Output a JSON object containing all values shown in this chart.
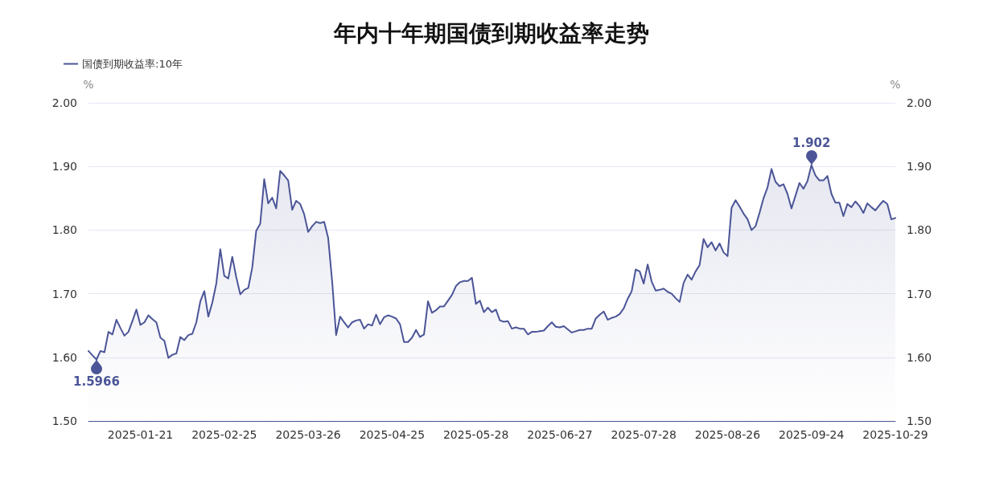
{
  "chart_data": {
    "type": "area",
    "title": "年内十年期国债到期收益率走势",
    "ylabel": "%",
    "y2label": "%",
    "legend": "top left",
    "grid": "y",
    "categories": [
      null,
      null,
      null,
      null,
      null,
      null,
      null,
      null,
      null,
      null,
      null,
      null,
      null,
      "2025-01-21",
      null,
      null,
      null,
      null,
      null,
      null,
      null,
      null,
      null,
      null,
      null,
      null,
      null,
      null,
      null,
      null,
      null,
      null,
      null,
      null,
      "2025-02-25",
      null,
      null,
      null,
      null,
      null,
      null,
      null,
      null,
      null,
      null,
      null,
      null,
      null,
      null,
      null,
      null,
      null,
      null,
      null,
      null,
      "2025-03-26",
      null,
      null,
      null,
      null,
      null,
      null,
      null,
      null,
      null,
      null,
      null,
      null,
      null,
      null,
      null,
      null,
      null,
      null,
      null,
      null,
      "2025-04-25",
      null,
      null,
      null,
      null,
      null,
      null,
      null,
      null,
      null,
      null,
      null,
      null,
      null,
      null,
      null,
      null,
      null,
      null,
      null,
      null,
      "2025-05-28",
      null,
      null,
      null,
      null,
      null,
      null,
      null,
      null,
      null,
      null,
      null,
      null,
      null,
      null,
      null,
      null,
      null,
      null,
      null,
      null,
      "2025-06-27",
      null,
      null,
      null,
      null,
      null,
      null,
      null,
      null,
      null,
      null,
      null,
      null,
      null,
      null,
      null,
      null,
      null,
      null,
      null,
      null,
      "2025-07-28",
      null,
      null,
      null,
      null,
      null,
      null,
      null,
      null,
      null,
      null,
      null,
      null,
      null,
      null,
      null,
      null,
      null,
      null,
      null,
      null,
      "2025-08-26",
      null,
      null,
      null,
      null,
      null,
      null,
      null,
      null,
      null,
      null,
      null,
      null,
      null,
      null,
      null,
      null,
      null,
      null,
      null,
      null,
      "2025-09-24",
      null,
      null,
      null,
      null,
      null,
      null,
      null,
      null,
      null,
      null,
      null,
      null,
      null,
      null,
      null,
      null,
      null,
      null,
      null,
      null,
      "2025-10-29"
    ],
    "series": [
      {
        "name": "国债到期收益率:10年",
        "color": "#4b5597",
        "values": [
          1.61,
          1.603,
          1.5966,
          1.61,
          1.608,
          1.64,
          1.636,
          1.659,
          1.646,
          1.634,
          1.64,
          1.657,
          1.675,
          1.651,
          1.655,
          1.666,
          1.66,
          1.655,
          1.631,
          1.626,
          1.599,
          1.604,
          1.606,
          1.632,
          1.627,
          1.635,
          1.637,
          1.655,
          1.688,
          1.704,
          1.664,
          1.686,
          1.716,
          1.77,
          1.728,
          1.724,
          1.758,
          1.726,
          1.699,
          1.706,
          1.709,
          1.741,
          1.799,
          1.81,
          1.88,
          1.842,
          1.851,
          1.834,
          1.893,
          1.886,
          1.878,
          1.832,
          1.846,
          1.841,
          1.825,
          1.797,
          1.806,
          1.813,
          1.811,
          1.813,
          1.788,
          1.72,
          1.635,
          1.664,
          1.655,
          1.647,
          1.655,
          1.658,
          1.659,
          1.645,
          1.652,
          1.65,
          1.667,
          1.652,
          1.663,
          1.666,
          1.664,
          1.661,
          1.652,
          1.624,
          1.624,
          1.631,
          1.643,
          1.632,
          1.636,
          1.688,
          1.67,
          1.674,
          1.68,
          1.68,
          1.689,
          1.698,
          1.712,
          1.718,
          1.72,
          1.72,
          1.725,
          1.684,
          1.689,
          1.671,
          1.678,
          1.671,
          1.675,
          1.658,
          1.656,
          1.657,
          1.645,
          1.647,
          1.645,
          1.645,
          1.636,
          1.64,
          1.64,
          1.641,
          1.642,
          1.649,
          1.655,
          1.648,
          1.647,
          1.649,
          1.644,
          1.639,
          1.641,
          1.643,
          1.643,
          1.645,
          1.645,
          1.661,
          1.667,
          1.672,
          1.659,
          1.662,
          1.664,
          1.668,
          1.677,
          1.692,
          1.704,
          1.738,
          1.735,
          1.716,
          1.746,
          1.719,
          1.705,
          1.706,
          1.708,
          1.703,
          1.7,
          1.693,
          1.687,
          1.717,
          1.73,
          1.722,
          1.735,
          1.745,
          1.786,
          1.773,
          1.781,
          1.768,
          1.779,
          1.765,
          1.759,
          1.835,
          1.847,
          1.837,
          1.826,
          1.817,
          1.8,
          1.806,
          1.827,
          1.85,
          1.867,
          1.896,
          1.876,
          1.869,
          1.872,
          1.857,
          1.834,
          1.854,
          1.874,
          1.865,
          1.877,
          1.902,
          1.886,
          1.878,
          1.878,
          1.885,
          1.857,
          1.843,
          1.843,
          1.822,
          1.841,
          1.836,
          1.845,
          1.838,
          1.827,
          1.842,
          1.836,
          1.831,
          1.839,
          1.846,
          1.841,
          1.817,
          1.819
        ],
        "value_labels": [
          null,
          null,
          "1.5966",
          null,
          null,
          null,
          null,
          null,
          null,
          null,
          null,
          null,
          null,
          null,
          null,
          null,
          null,
          null,
          null,
          null,
          null,
          null,
          null,
          null,
          null,
          null,
          null,
          null,
          null,
          null,
          null,
          null,
          null,
          null,
          null,
          null,
          null,
          null,
          null,
          null,
          null,
          null,
          null,
          null,
          null,
          null,
          null,
          null,
          null,
          null,
          null,
          null,
          null,
          null,
          null,
          null,
          null,
          null,
          null,
          null,
          null,
          null,
          null,
          null,
          null,
          null,
          null,
          null,
          null,
          null,
          null,
          null,
          null,
          null,
          null,
          null,
          null,
          null,
          null,
          null,
          null,
          null,
          null,
          null,
          null,
          null,
          null,
          null,
          null,
          null,
          null,
          null,
          null,
          null,
          null,
          null,
          null,
          null,
          null,
          null,
          null,
          null,
          null,
          null,
          null,
          null,
          null,
          null,
          null,
          null,
          null,
          null,
          null,
          null,
          null,
          null,
          null,
          null,
          null,
          null,
          null,
          null,
          null,
          null,
          null,
          null,
          null,
          null,
          null,
          null,
          null,
          null,
          null,
          null,
          null,
          null,
          null,
          null,
          null,
          null,
          null,
          null,
          null,
          null,
          null,
          null,
          null,
          null,
          null,
          null,
          null,
          null,
          null,
          null,
          null,
          null,
          null,
          null,
          null,
          null,
          null,
          null,
          null,
          null,
          null,
          null,
          null,
          null,
          null,
          null,
          null,
          null,
          null,
          null,
          null,
          null,
          null,
          null,
          null,
          null,
          null,
          "1.902",
          null,
          null,
          null,
          null,
          null,
          null,
          null,
          null,
          null,
          null,
          null,
          null,
          null,
          null,
          null,
          null,
          null,
          null,
          null,
          null,
          null
        ]
      }
    ],
    "ylim": [
      1.5,
      2.0
    ],
    "yticks": [
      {
        "value": 1.5,
        "label": "1.50"
      },
      {
        "value": 1.6,
        "label": "1.60"
      },
      {
        "value": 1.7,
        "label": "1.70"
      },
      {
        "value": 1.8,
        "label": "1.80"
      },
      {
        "value": 1.9,
        "label": "1.90"
      },
      {
        "value": 2.0,
        "label": "2.00"
      }
    ],
    "y2lim": [
      1.5,
      2.0
    ],
    "y2ticks": [
      {
        "value": 1.5,
        "label": "1.50"
      },
      {
        "value": 1.6,
        "label": "1.60"
      },
      {
        "value": 1.7,
        "label": "1.70"
      },
      {
        "value": 1.8,
        "label": "1.80"
      },
      {
        "value": 1.9,
        "label": "1.90"
      },
      {
        "value": 2.0,
        "label": "2.00"
      }
    ]
  }
}
